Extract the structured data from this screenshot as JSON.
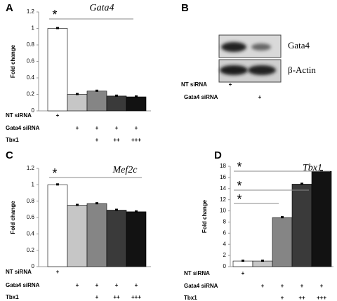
{
  "chart_data": [
    {
      "type": "bar",
      "letter": "A",
      "title": "Gata4",
      "y_label": "Fold change",
      "values": [
        1.0,
        0.2,
        0.24,
        0.18,
        0.17
      ],
      "colors": [
        "#ffffff",
        "#c6c6c6",
        "#858585",
        "#3a3a3a",
        "#121212"
      ],
      "ylim": [
        0,
        1.2
      ],
      "yticks": [
        0,
        0.2,
        0.4,
        0.6,
        0.8,
        1,
        1.2
      ],
      "significance": [
        "*"
      ],
      "conditions": [
        {
          "label": "NT siRNA",
          "marks": [
            "+",
            null,
            null,
            null,
            null
          ]
        },
        {
          "label": "Gata4 siRNA",
          "marks": [
            null,
            "+",
            "+",
            "+",
            "+"
          ]
        },
        {
          "label": "Tbx1",
          "marks": [
            null,
            null,
            "+",
            "++",
            "+++"
          ]
        }
      ]
    },
    {
      "type": "bar",
      "letter": "C",
      "title": "Mef2c",
      "y_label": "Fold change",
      "values": [
        1.0,
        0.75,
        0.77,
        0.69,
        0.67
      ],
      "colors": [
        "#ffffff",
        "#c6c6c6",
        "#858585",
        "#3a3a3a",
        "#121212"
      ],
      "ylim": [
        0,
        1.2
      ],
      "yticks": [
        0,
        0.2,
        0.4,
        0.6,
        0.8,
        1,
        1.2
      ],
      "significance": [
        "*"
      ],
      "conditions": [
        {
          "label": "NT siRNA",
          "marks": [
            "+",
            null,
            null,
            null,
            null
          ]
        },
        {
          "label": "Gata4 siRNA",
          "marks": [
            null,
            "+",
            "+",
            "+",
            "+"
          ]
        },
        {
          "label": "Tbx1",
          "marks": [
            null,
            null,
            "+",
            "++",
            "+++"
          ]
        }
      ]
    },
    {
      "type": "bar",
      "letter": "D",
      "title": "Tbx1",
      "y_label": "Fold change",
      "values": [
        1.0,
        1.0,
        8.8,
        14.8,
        17.1
      ],
      "colors": [
        "#ffffff",
        "#c6c6c6",
        "#858585",
        "#3a3a3a",
        "#121212"
      ],
      "ylim": [
        0,
        18
      ],
      "yticks": [
        0,
        2,
        4,
        6,
        8,
        10,
        12,
        14,
        16,
        18
      ],
      "significance": [
        "*",
        "*",
        "*"
      ],
      "conditions": [
        {
          "label": "NT siRNA",
          "marks": [
            "+",
            null,
            null,
            null,
            null
          ]
        },
        {
          "label": "Gata4 siRNA",
          "marks": [
            null,
            "+",
            "+",
            "+",
            "+"
          ]
        },
        {
          "label": "Tbx1",
          "marks": [
            null,
            null,
            "+",
            "++",
            "+++"
          ]
        }
      ]
    }
  ],
  "blot": {
    "letter": "B",
    "bands": [
      "Gata4",
      "β-Actin"
    ],
    "conditions": [
      {
        "label": "NT siRNA",
        "marks": [
          "+",
          null
        ]
      },
      {
        "label": "Gata4 siRNA",
        "marks": [
          null,
          "+"
        ]
      }
    ]
  }
}
